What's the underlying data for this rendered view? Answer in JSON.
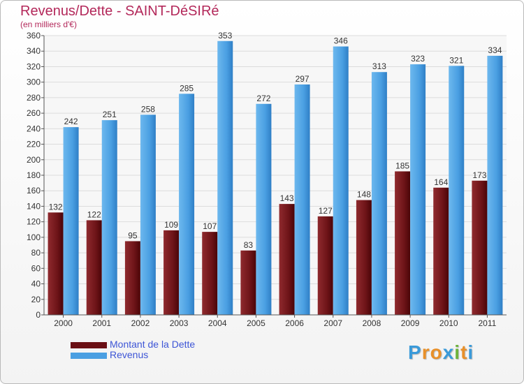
{
  "header": {
    "title": "Revenus/Dette - SAINT-DéSIRé",
    "subtitle": "(en milliers d'€)"
  },
  "chart_data": {
    "type": "bar",
    "categories": [
      "2000",
      "2001",
      "2002",
      "2003",
      "2004",
      "2005",
      "2006",
      "2007",
      "2008",
      "2009",
      "2010",
      "2011"
    ],
    "series": [
      {
        "name": "Montant de la Dette",
        "color": "#7a1a1f",
        "values": [
          132,
          122,
          95,
          109,
          107,
          83,
          143,
          127,
          148,
          185,
          164,
          173
        ]
      },
      {
        "name": "Revenus",
        "color": "#4fa3e3",
        "values": [
          242,
          251,
          258,
          285,
          353,
          272,
          297,
          346,
          313,
          323,
          321,
          334
        ]
      }
    ],
    "ylim": [
      0,
      360
    ],
    "yticks": [
      0,
      20,
      40,
      60,
      80,
      100,
      120,
      140,
      160,
      180,
      200,
      220,
      240,
      260,
      280,
      300,
      320,
      340,
      360
    ],
    "grid": true,
    "legend_position": "bottom-left"
  },
  "legend": {
    "debt_label": "Montant de la Dette",
    "revenue_label": "Revenus"
  },
  "logo": {
    "letters": [
      "P",
      "r",
      "o",
      "x",
      "i",
      "t",
      "i"
    ],
    "colors": [
      "#3a9ad9",
      "#e8902a",
      "#e8902a",
      "#3a9ad9",
      "#6fb33c",
      "#e8902a",
      "#3a9ad9"
    ]
  }
}
